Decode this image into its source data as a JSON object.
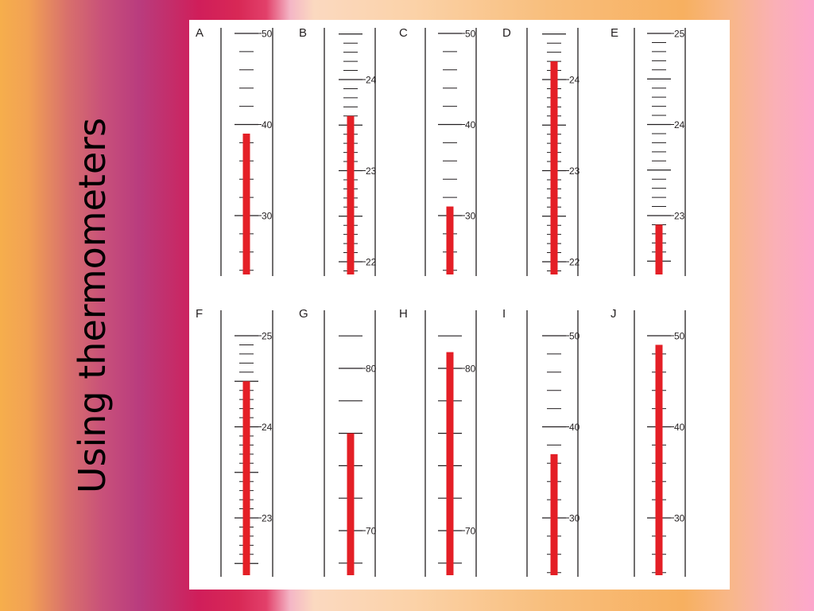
{
  "slide": {
    "title": "Using thermometers"
  },
  "chart_data": {
    "type": "diagram",
    "title": "",
    "thermometers": [
      {
        "letter": "A",
        "row": 0,
        "col": 0,
        "scale_min": 24,
        "scale_max": 50,
        "major": 10,
        "minor": 2,
        "label_side": "right",
        "tick_labels": [
          30,
          40,
          50
        ],
        "reading": 39
      },
      {
        "letter": "B",
        "row": 0,
        "col": 1,
        "scale_min": 21.9,
        "scale_max": 24.5,
        "major": 0.5,
        "minor": 0.1,
        "label_side": "right",
        "tick_labels": [
          22,
          23,
          24
        ],
        "reading": 23.6
      },
      {
        "letter": "C",
        "row": 0,
        "col": 2,
        "scale_min": 24,
        "scale_max": 50,
        "major": 10,
        "minor": 2,
        "label_side": "right",
        "tick_labels": [
          30,
          40,
          50
        ],
        "reading": 31
      },
      {
        "letter": "D",
        "row": 0,
        "col": 3,
        "scale_min": 21.9,
        "scale_max": 24.5,
        "major": 0.5,
        "minor": 0.1,
        "label_side": "right",
        "tick_labels": [
          22,
          23,
          24
        ],
        "reading": 24.2
      },
      {
        "letter": "E",
        "row": 0,
        "col": 4,
        "scale_min": 22.5,
        "scale_max": 25,
        "major": 0.5,
        "minor": 0.1,
        "label_side": "right",
        "tick_labels": [
          23,
          24,
          25
        ],
        "reading": 22.9
      },
      {
        "letter": "F",
        "row": 1,
        "col": 0,
        "scale_min": 22.5,
        "scale_max": 25,
        "major": 0.5,
        "minor": 0.1,
        "label_side": "right",
        "tick_labels": [
          23,
          24,
          25
        ],
        "reading": 24.5
      },
      {
        "letter": "G",
        "row": 1,
        "col": 1,
        "scale_min": 67,
        "scale_max": 82,
        "major": 2,
        "minor": 2,
        "label_side": "right",
        "tick_labels": [
          70,
          80
        ],
        "reading": 76
      },
      {
        "letter": "H",
        "row": 1,
        "col": 2,
        "scale_min": 67,
        "scale_max": 82,
        "major": 2,
        "minor": 2,
        "label_side": "right",
        "tick_labels": [
          70,
          80
        ],
        "reading": 81
      },
      {
        "letter": "I",
        "row": 1,
        "col": 3,
        "scale_min": 24,
        "scale_max": 50,
        "major": 10,
        "minor": 2,
        "label_side": "right",
        "tick_labels": [
          30,
          40,
          50
        ],
        "reading": 37
      },
      {
        "letter": "J",
        "row": 1,
        "col": 4,
        "scale_min": 24,
        "scale_max": 50,
        "major": 10,
        "minor": 2,
        "label_side": "right",
        "tick_labels": [
          30,
          40,
          50
        ],
        "reading": 49
      }
    ],
    "colors": {
      "liquid": "#e41f26",
      "ink": "#231f20",
      "panel": "#ffffff"
    }
  }
}
